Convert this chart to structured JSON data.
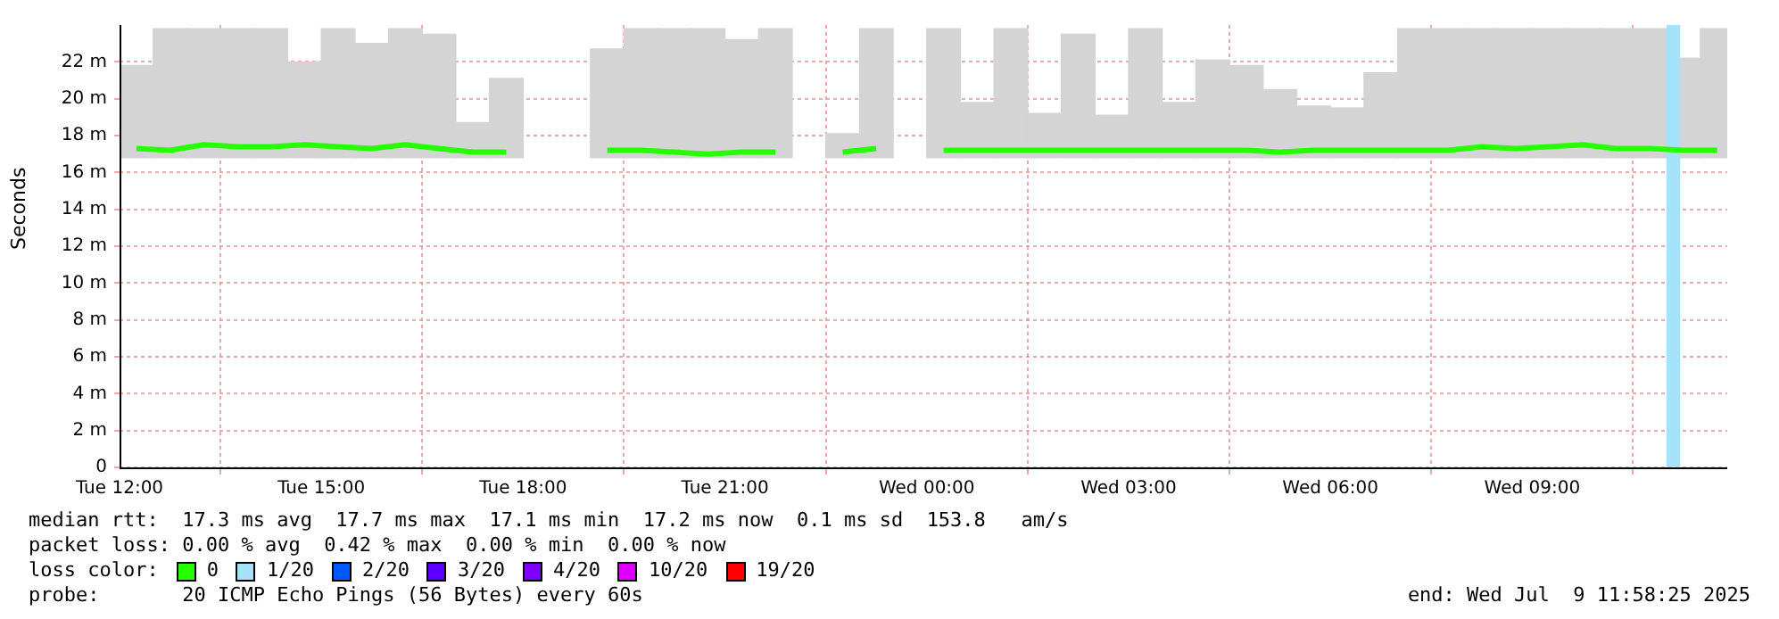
{
  "chart_data": {
    "type": "bar",
    "ylabel": "Seconds",
    "x": [
      "2025-07-08T12:15",
      "2025-07-08T12:45",
      "2025-07-08T13:15",
      "2025-07-08T13:45",
      "2025-07-08T14:15",
      "2025-07-08T14:45",
      "2025-07-08T15:15",
      "2025-07-08T15:45",
      "2025-07-08T16:15",
      "2025-07-08T16:45",
      "2025-07-08T17:15",
      "2025-07-08T17:45",
      "2025-07-08T18:15",
      "2025-07-08T18:45",
      "2025-07-08T19:15",
      "2025-07-08T19:45",
      "2025-07-08T20:15",
      "2025-07-08T20:45",
      "2025-07-08T21:15",
      "2025-07-08T21:45",
      "2025-07-08T22:15",
      "2025-07-08T22:45",
      "2025-07-08T23:15",
      "2025-07-08T23:45",
      "2025-07-09T00:15",
      "2025-07-09T00:45",
      "2025-07-09T01:15",
      "2025-07-09T01:45",
      "2025-07-09T02:15",
      "2025-07-09T02:45",
      "2025-07-09T03:15",
      "2025-07-09T03:45",
      "2025-07-09T04:15",
      "2025-07-09T04:45",
      "2025-07-09T05:15",
      "2025-07-09T05:45",
      "2025-07-09T06:15",
      "2025-07-09T06:45",
      "2025-07-09T07:15",
      "2025-07-09T07:45",
      "2025-07-09T08:15",
      "2025-07-09T08:45",
      "2025-07-09T09:15",
      "2025-07-09T09:45",
      "2025-07-09T10:15",
      "2025-07-09T10:45",
      "2025-07-09T11:15",
      "2025-07-09T11:45"
    ],
    "series": [
      {
        "color": "#d4d4d4",
        "base": [
          16.8,
          16.8,
          16.8,
          16.8,
          16.8,
          16.8,
          16.8,
          16.8,
          16.8,
          16.8,
          16.8,
          16.8,
          null,
          null,
          16.8,
          16.8,
          16.8,
          16.8,
          16.8,
          16.8,
          null,
          16.8,
          16.8,
          null,
          16.8,
          16.8,
          16.8,
          16.8,
          16.8,
          16.8,
          16.8,
          16.8,
          16.8,
          16.8,
          16.8,
          16.8,
          16.8,
          16.8,
          16.8,
          16.8,
          16.8,
          16.8,
          16.8,
          16.8,
          16.8,
          16.8,
          16.8,
          16.8
        ],
        "values": [
          5.0,
          7.0,
          7.0,
          7.0,
          7.0,
          5.2,
          7.0,
          6.2,
          7.0,
          6.7,
          1.9,
          4.3,
          null,
          null,
          5.9,
          7.0,
          7.0,
          7.0,
          6.4,
          7.0,
          null,
          1.3,
          7.0,
          null,
          7.0,
          3.0,
          7.0,
          2.4,
          6.7,
          2.3,
          7.0,
          3.0,
          5.3,
          5.0,
          3.7,
          2.8,
          2.7,
          4.6,
          7.0,
          7.0,
          7.0,
          7.0,
          7.0,
          7.0,
          7.0,
          7.0,
          5.4,
          7.0
        ]
      },
      {
        "type": "line",
        "name": "0",
        "color": "#26ff00",
        "values": [
          17.3,
          17.2,
          17.5,
          17.4,
          17.4,
          17.5,
          17.4,
          17.3,
          17.5,
          17.3,
          17.1,
          17.1,
          null,
          null,
          17.2,
          17.2,
          17.1,
          17.0,
          17.1,
          17.1,
          null,
          17.1,
          17.3,
          null,
          17.2,
          17.2,
          17.2,
          17.2,
          17.2,
          17.2,
          17.2,
          17.2,
          17.2,
          17.2,
          17.1,
          17.2,
          17.2,
          17.2,
          17.2,
          17.2,
          17.4,
          17.3,
          17.4,
          17.5,
          17.3,
          17.3,
          17.2,
          17.2
        ]
      },
      {
        "type": "bar",
        "name": "1/20",
        "color": "#a6e3fa",
        "x": [
          "2025-07-09T11:06"
        ],
        "values": [
          24
        ]
      },
      {
        "type": "line",
        "name": "2/20",
        "color": "#0059ff",
        "values": [
          null,
          null,
          null,
          null,
          null,
          null,
          null,
          null,
          null,
          null,
          null,
          null,
          null,
          null,
          null,
          null,
          null,
          null,
          null,
          null,
          null,
          null,
          null,
          null,
          null,
          null,
          null,
          null,
          null,
          null,
          null,
          null,
          null,
          null,
          null,
          null,
          null,
          null,
          null,
          null,
          null,
          null,
          null,
          null,
          null,
          null,
          null,
          null
        ]
      },
      {
        "type": "line",
        "name": "3/20",
        "color": "#5e00ff",
        "values": [
          null,
          null,
          null,
          null,
          null,
          null,
          null,
          null,
          null,
          null,
          null,
          null,
          null,
          null,
          null,
          null,
          null,
          null,
          null,
          null,
          null,
          null,
          null,
          null,
          null,
          null,
          null,
          null,
          null,
          null,
          null,
          null,
          null,
          null,
          null,
          null,
          null,
          null,
          null,
          null,
          null,
          null,
          null,
          null,
          null,
          null,
          null,
          null
        ]
      },
      {
        "type": "line",
        "name": "4/20",
        "color": "#7e00ff",
        "values": [
          null,
          null,
          null,
          null,
          null,
          null,
          null,
          null,
          null,
          null,
          null,
          null,
          null,
          null,
          null,
          null,
          null,
          null,
          null,
          null,
          null,
          null,
          null,
          null,
          null,
          null,
          null,
          null,
          null,
          null,
          null,
          null,
          null,
          null,
          null,
          null,
          null,
          null,
          null,
          null,
          null,
          null,
          null,
          null,
          null,
          null,
          null,
          null
        ]
      },
      {
        "type": "line",
        "name": "10/20",
        "color": "#dd00ff",
        "values": [
          null,
          null,
          null,
          null,
          null,
          null,
          null,
          null,
          null,
          null,
          null,
          null,
          null,
          null,
          null,
          null,
          null,
          null,
          null,
          null,
          null,
          null,
          null,
          null,
          null,
          null,
          null,
          null,
          null,
          null,
          null,
          null,
          null,
          null,
          null,
          null,
          null,
          null,
          null,
          null,
          null,
          null,
          null,
          null,
          null,
          null,
          null,
          null
        ]
      },
      {
        "type": "line",
        "name": "19/20",
        "color": "#ff0000",
        "values": [
          null,
          null,
          null,
          null,
          null,
          null,
          null,
          null,
          null,
          null,
          null,
          null,
          null,
          null,
          null,
          null,
          null,
          null,
          null,
          null,
          null,
          null,
          null,
          null,
          null,
          null,
          null,
          null,
          null,
          null,
          null,
          null,
          null,
          null,
          null,
          null,
          null,
          null,
          null,
          null,
          null,
          null,
          null,
          null,
          null,
          null,
          null,
          null
        ]
      }
    ],
    "xlim": [
      "2025-07-08T12:00",
      "2025-07-09T11:54"
    ],
    "xticks": [
      {
        "value": "2025-07-08T12:00",
        "label": "Tue 12:00"
      },
      {
        "value": "2025-07-08T15:00",
        "label": "Tue 15:00"
      },
      {
        "value": "2025-07-08T18:00",
        "label": "Tue 18:00"
      },
      {
        "value": "2025-07-08T21:00",
        "label": "Tue 21:00"
      },
      {
        "value": "2025-07-09T00:00",
        "label": "Wed 00:00"
      },
      {
        "value": "2025-07-09T03:00",
        "label": "Wed 03:00"
      },
      {
        "value": "2025-07-09T06:00",
        "label": "Wed 06:00"
      },
      {
        "value": "2025-07-09T09:00",
        "label": "Wed 09:00"
      }
    ],
    "ylim": [
      0,
      24
    ],
    "yticks": [
      0,
      {
        "value": 2,
        "label": "2 m"
      },
      {
        "value": 4,
        "label": "4 m"
      },
      {
        "value": 6,
        "label": "6 m"
      },
      {
        "value": 8,
        "label": "8 m"
      },
      {
        "value": 10,
        "label": "10 m"
      },
      {
        "value": 12,
        "label": "12 m"
      },
      {
        "value": 14,
        "label": "14 m"
      },
      {
        "value": 16,
        "label": "16 m"
      },
      {
        "value": 18,
        "label": "18 m"
      },
      {
        "value": 20,
        "label": "20 m"
      },
      {
        "value": 22,
        "label": "22 m"
      }
    ],
    "grid": true,
    "legend": "bottom",
    "legend_title": "loss color:",
    "annotations": [
      "median rtt:  17.3 ms avg  17.7 ms max  17.1 ms min  17.2 ms now  0.1 ms sd  153.8   am/s",
      "packet loss: 0.00 % avg  0.42 % max  0.00 % min  0.00 % now",
      "probe:       20 ICMP Echo Pings (56 Bytes) every 60s",
      "end: Wed Jul  9 11:58:25 2025"
    ]
  }
}
